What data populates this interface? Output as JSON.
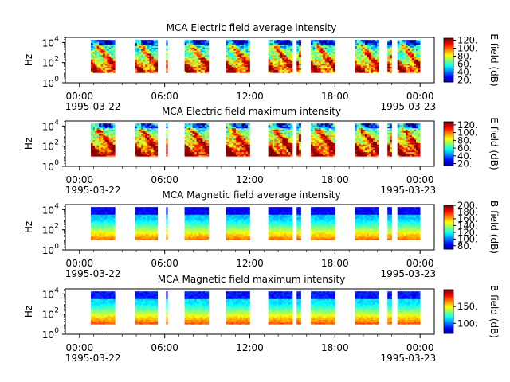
{
  "chart_data": [
    {
      "type": "heatmap",
      "title": "MCA  Electric field average intensity",
      "ylabel": "Hz",
      "y_scale": "log",
      "ylim": [
        1,
        31622
      ],
      "y_ticks": [
        {
          "base": "10",
          "exp": "0"
        },
        {
          "base": "10",
          "exp": "2"
        },
        {
          "base": "10",
          "exp": "4"
        }
      ],
      "y_tick_values": [
        1,
        100,
        10000
      ],
      "x_ticks": [
        "00:00",
        "06:00",
        "12:00",
        "18:00",
        "00:00"
      ],
      "x_tick_hours": [
        0,
        6,
        12,
        18,
        24
      ],
      "date_labels": [
        "1995-03-22",
        "1995-03-23"
      ],
      "colorbar_label": "E field (dB)",
      "colorbar_range": [
        15,
        125
      ],
      "colorbar_ticks": [
        "20.",
        "40.",
        "60.",
        "80.",
        "100.",
        "120."
      ],
      "colorbar_tick_values": [
        20,
        40,
        60,
        80,
        100,
        120
      ],
      "colormap": "jet",
      "field": "E",
      "mode": "average"
    },
    {
      "type": "heatmap",
      "title": "MCA  Electric field maximum intensity",
      "ylabel": "Hz",
      "y_scale": "log",
      "ylim": [
        1,
        31622
      ],
      "y_ticks": [
        {
          "base": "10",
          "exp": "0"
        },
        {
          "base": "10",
          "exp": "2"
        },
        {
          "base": "10",
          "exp": "4"
        }
      ],
      "y_tick_values": [
        1,
        100,
        10000
      ],
      "x_ticks": [
        "00:00",
        "06:00",
        "12:00",
        "18:00",
        "00:00"
      ],
      "x_tick_hours": [
        0,
        6,
        12,
        18,
        24
      ],
      "date_labels": [
        "1995-03-22",
        "1995-03-23"
      ],
      "colorbar_label": "E field (dB)",
      "colorbar_range": [
        15,
        128
      ],
      "colorbar_ticks": [
        "20.",
        "40.",
        "60.",
        "80.",
        "100.",
        "120."
      ],
      "colorbar_tick_values": [
        20,
        40,
        60,
        80,
        100,
        120
      ],
      "colormap": "jet",
      "field": "E",
      "mode": "maximum"
    },
    {
      "type": "heatmap",
      "title": "MCA  Magnetic field average intensity",
      "ylabel": "Hz",
      "y_scale": "log",
      "ylim": [
        1,
        31622
      ],
      "y_ticks": [
        {
          "base": "10",
          "exp": "0"
        },
        {
          "base": "10",
          "exp": "2"
        },
        {
          "base": "10",
          "exp": "4"
        }
      ],
      "y_tick_values": [
        1,
        100,
        10000
      ],
      "x_ticks": [
        "00:00",
        "06:00",
        "12:00",
        "18:00",
        "00:00"
      ],
      "x_tick_hours": [
        0,
        6,
        12,
        18,
        24
      ],
      "date_labels": [
        "1995-03-22",
        "1995-03-23"
      ],
      "colorbar_label": "B field (dB)",
      "colorbar_range": [
        70,
        200
      ],
      "colorbar_ticks": [
        "80.",
        "100.",
        "120.",
        "140.",
        "160.",
        "180.",
        "200."
      ],
      "colorbar_tick_values": [
        80,
        100,
        120,
        140,
        160,
        180,
        200
      ],
      "colormap": "jet",
      "field": "B",
      "mode": "average"
    },
    {
      "type": "heatmap",
      "title": "MCA  Magnetic field maximum intensity",
      "ylabel": "Hz",
      "y_scale": "log",
      "ylim": [
        1,
        31622
      ],
      "y_ticks": [
        {
          "base": "10",
          "exp": "0"
        },
        {
          "base": "10",
          "exp": "2"
        },
        {
          "base": "10",
          "exp": "4"
        }
      ],
      "y_tick_values": [
        1,
        100,
        10000
      ],
      "x_ticks": [
        "00:00",
        "06:00",
        "12:00",
        "18:00",
        "00:00"
      ],
      "x_tick_hours": [
        0,
        6,
        12,
        18,
        24
      ],
      "date_labels": [
        "1995-03-22",
        "1995-03-23"
      ],
      "colorbar_label": "B field (dB)",
      "colorbar_range": [
        70,
        200
      ],
      "colorbar_ticks": [
        "100.",
        "150."
      ],
      "colorbar_tick_values": [
        100,
        150
      ],
      "colormap": "jet",
      "field": "B",
      "mode": "maximum"
    }
  ],
  "data_segments_hours": [
    [
      0.8,
      2.5
    ],
    [
      3.9,
      5.5
    ],
    [
      6.1,
      6.2
    ],
    [
      7.4,
      9.1
    ],
    [
      10.3,
      12.0
    ],
    [
      13.3,
      15.0
    ],
    [
      15.3,
      15.6
    ],
    [
      16.3,
      18.0
    ],
    [
      19.4,
      21.1
    ],
    [
      21.7,
      22.0
    ],
    [
      22.4,
      24.0
    ]
  ],
  "frequency_coverage_hz": [
    10,
    17782
  ]
}
